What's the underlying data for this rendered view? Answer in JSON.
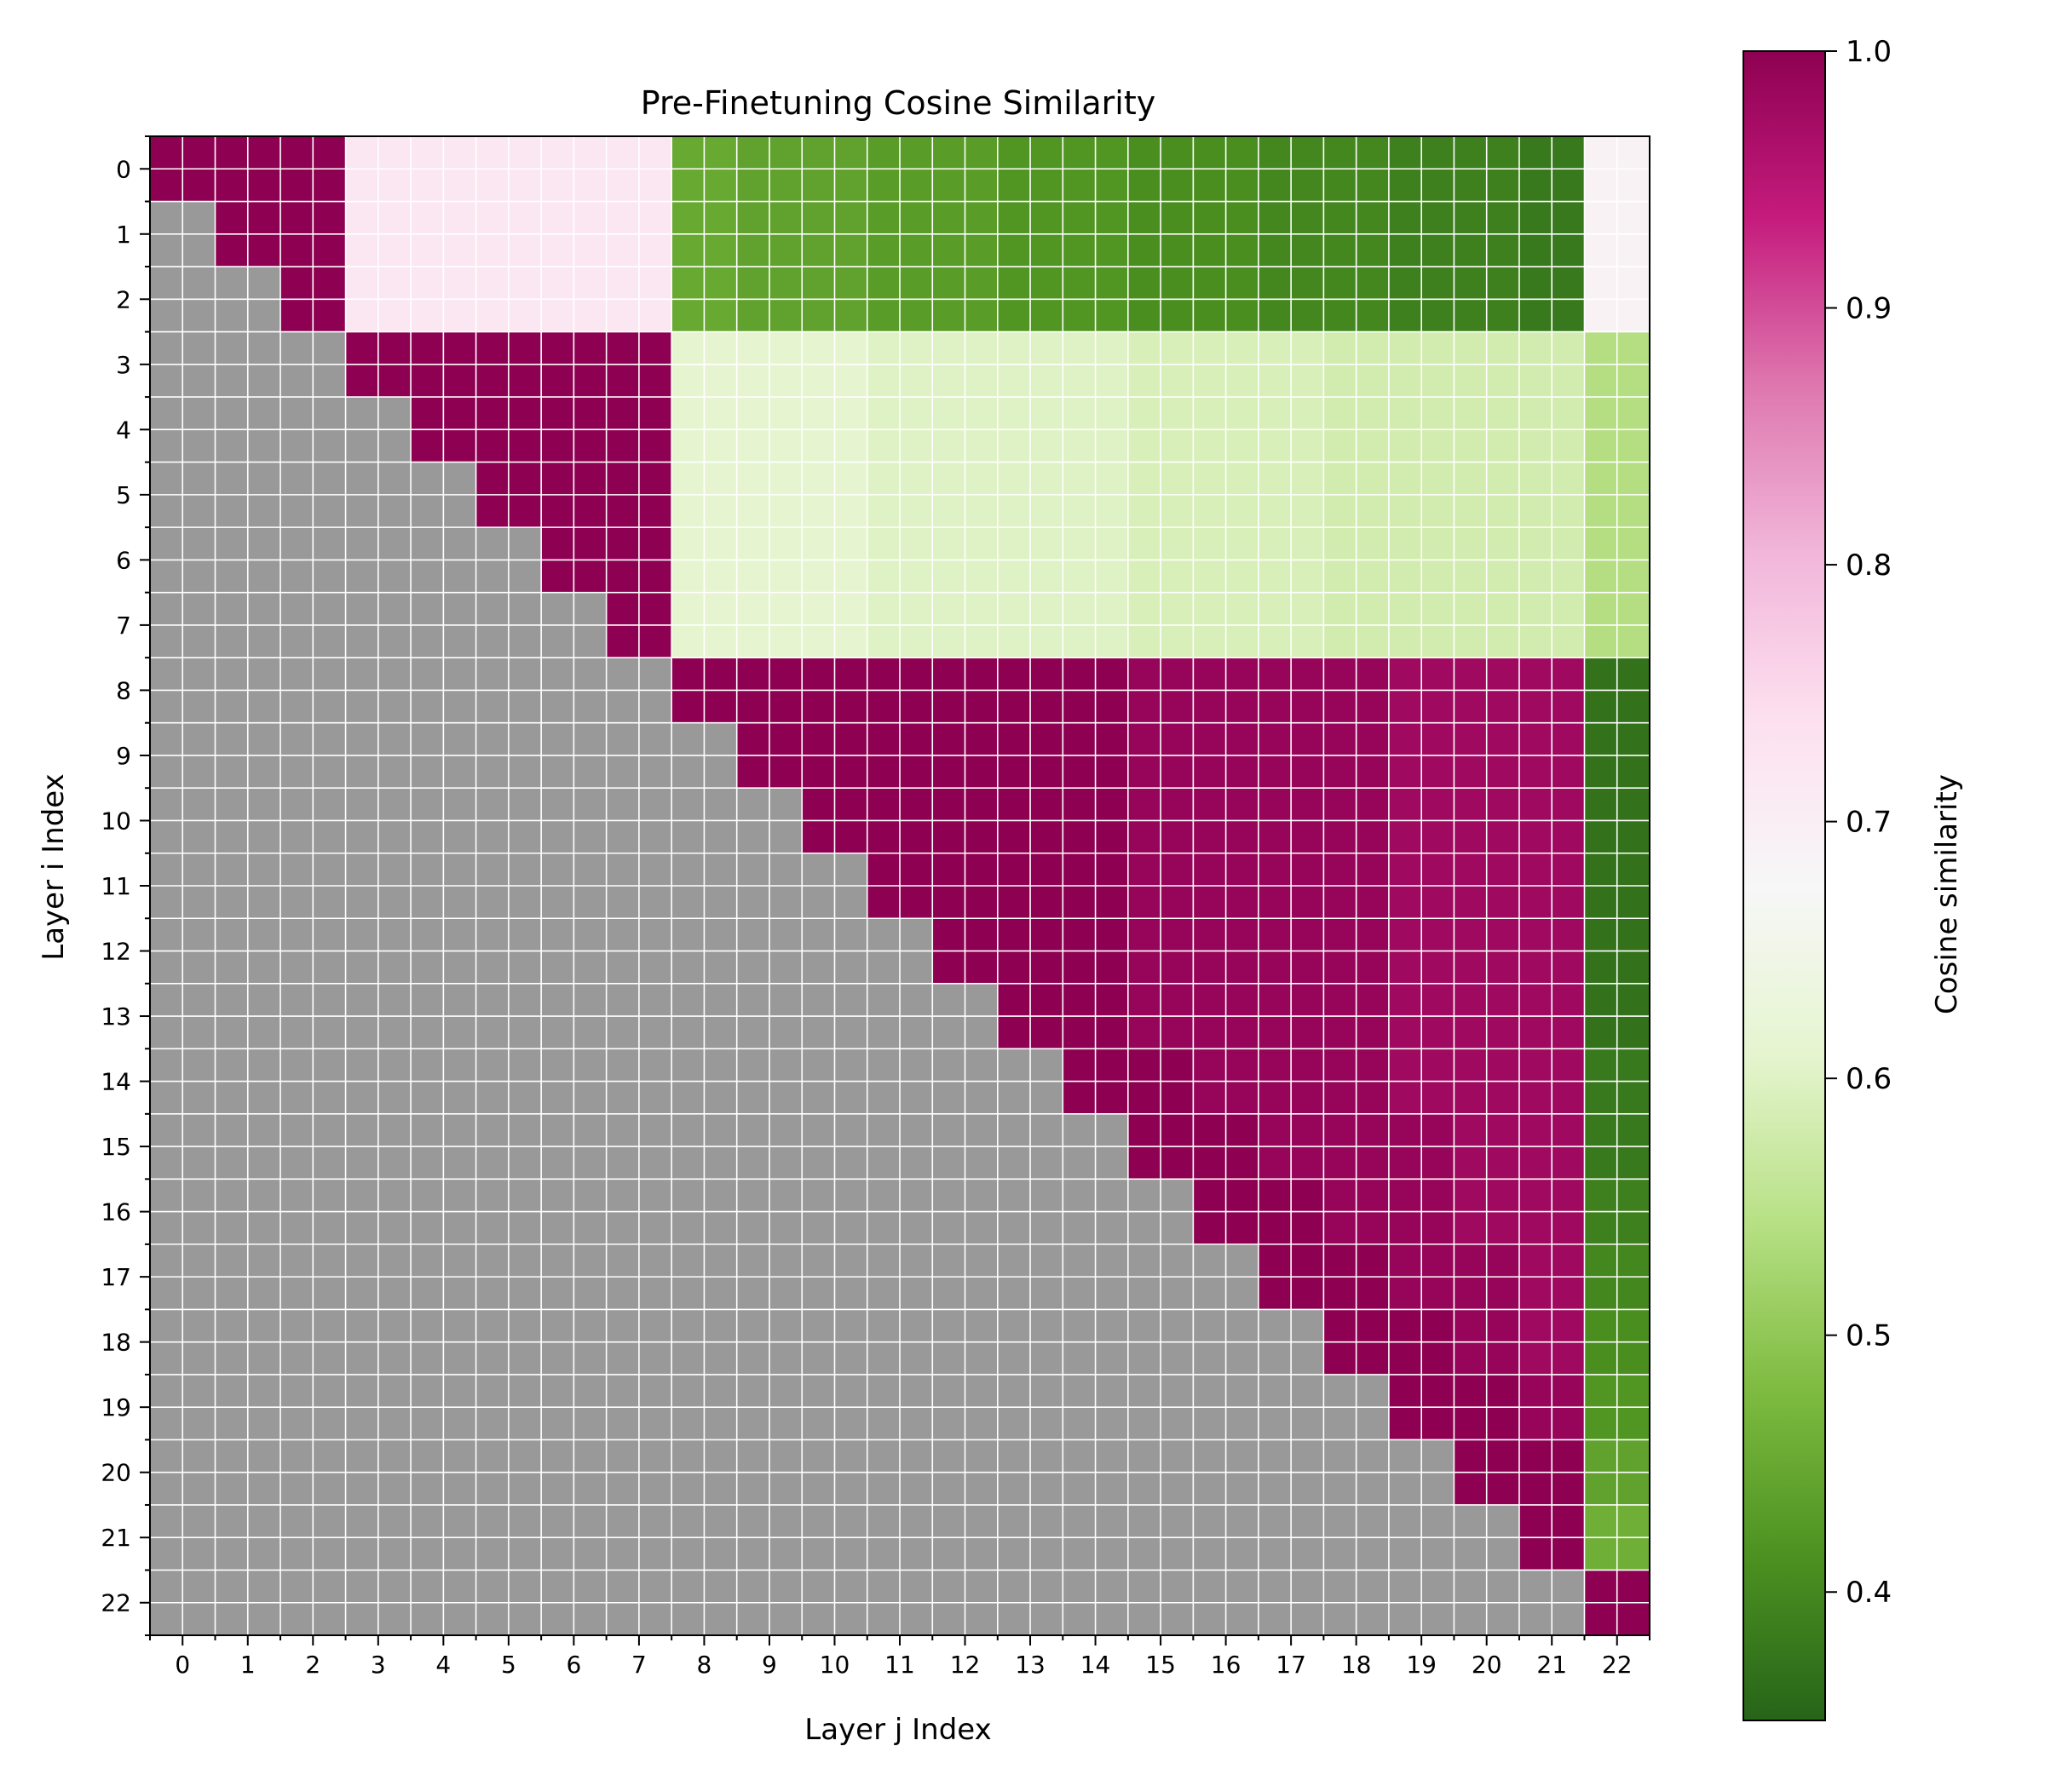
{
  "chart_data": {
    "type": "heatmap",
    "title": "Pre-Finetuning Cosine Similarity",
    "xlabel": "Layer j Index",
    "ylabel": "Layer i Index",
    "x_ticks": [
      "0",
      "1",
      "2",
      "3",
      "4",
      "5",
      "6",
      "7",
      "8",
      "9",
      "10",
      "11",
      "12",
      "13",
      "14",
      "15",
      "16",
      "17",
      "18",
      "19",
      "20",
      "21",
      "22"
    ],
    "y_ticks": [
      "0",
      "1",
      "2",
      "3",
      "4",
      "5",
      "6",
      "7",
      "8",
      "9",
      "10",
      "11",
      "12",
      "13",
      "14",
      "15",
      "16",
      "17",
      "18",
      "19",
      "20",
      "21",
      "22"
    ],
    "grid": true,
    "subcells_per_layer": 2,
    "masked_color": "#999999",
    "colorbar": {
      "label": "Cosine similarity",
      "min": 0.35,
      "max": 1.0,
      "ticks": [
        "0.4",
        "0.5",
        "0.6",
        "0.7",
        "0.8",
        "0.9",
        "1.0"
      ],
      "colormap": "PiYG",
      "colormap_stops": [
        "#276419",
        "#4d9221",
        "#7fbc41",
        "#b8e186",
        "#e6f5d0",
        "#f7f7f7",
        "#fde0ef",
        "#f1b6da",
        "#de77ae",
        "#c51b7d",
        "#8e0152"
      ]
    },
    "values": [
      [
        1.0,
        1.0,
        1.0,
        0.72,
        0.72,
        0.72,
        0.72,
        0.72,
        0.45,
        0.44,
        0.44,
        0.43,
        0.43,
        0.42,
        0.42,
        0.41,
        0.41,
        0.4,
        0.4,
        0.39,
        0.39,
        0.38,
        0.69
      ],
      [
        null,
        1.0,
        1.0,
        0.72,
        0.72,
        0.72,
        0.72,
        0.72,
        0.45,
        0.44,
        0.44,
        0.43,
        0.43,
        0.42,
        0.42,
        0.41,
        0.41,
        0.4,
        0.4,
        0.39,
        0.39,
        0.38,
        0.69
      ],
      [
        null,
        null,
        1.0,
        0.72,
        0.72,
        0.72,
        0.72,
        0.72,
        0.45,
        0.44,
        0.44,
        0.43,
        0.43,
        0.42,
        0.42,
        0.41,
        0.41,
        0.4,
        0.4,
        0.39,
        0.39,
        0.38,
        0.69
      ],
      [
        null,
        null,
        null,
        1.0,
        1.0,
        1.0,
        1.0,
        1.0,
        0.61,
        0.61,
        0.61,
        0.6,
        0.6,
        0.6,
        0.6,
        0.59,
        0.59,
        0.59,
        0.58,
        0.58,
        0.58,
        0.58,
        0.54
      ],
      [
        null,
        null,
        null,
        null,
        1.0,
        1.0,
        1.0,
        1.0,
        0.61,
        0.61,
        0.61,
        0.6,
        0.6,
        0.6,
        0.6,
        0.59,
        0.59,
        0.59,
        0.58,
        0.58,
        0.58,
        0.58,
        0.54
      ],
      [
        null,
        null,
        null,
        null,
        null,
        1.0,
        1.0,
        1.0,
        0.61,
        0.61,
        0.61,
        0.6,
        0.6,
        0.6,
        0.6,
        0.59,
        0.59,
        0.59,
        0.58,
        0.58,
        0.58,
        0.58,
        0.54
      ],
      [
        null,
        null,
        null,
        null,
        null,
        null,
        1.0,
        1.0,
        0.61,
        0.61,
        0.61,
        0.6,
        0.6,
        0.6,
        0.6,
        0.59,
        0.59,
        0.59,
        0.58,
        0.58,
        0.58,
        0.58,
        0.54
      ],
      [
        null,
        null,
        null,
        null,
        null,
        null,
        null,
        1.0,
        0.61,
        0.61,
        0.61,
        0.6,
        0.6,
        0.6,
        0.6,
        0.59,
        0.59,
        0.59,
        0.58,
        0.58,
        0.58,
        0.58,
        0.54
      ],
      [
        null,
        null,
        null,
        null,
        null,
        null,
        null,
        null,
        1.0,
        1.0,
        1.0,
        1.0,
        1.0,
        1.0,
        1.0,
        0.99,
        0.99,
        0.99,
        0.99,
        0.98,
        0.98,
        0.98,
        0.37
      ],
      [
        null,
        null,
        null,
        null,
        null,
        null,
        null,
        null,
        null,
        1.0,
        1.0,
        1.0,
        1.0,
        1.0,
        1.0,
        0.99,
        0.99,
        0.99,
        0.99,
        0.98,
        0.98,
        0.98,
        0.37
      ],
      [
        null,
        null,
        null,
        null,
        null,
        null,
        null,
        null,
        null,
        null,
        1.0,
        1.0,
        1.0,
        1.0,
        1.0,
        0.99,
        0.99,
        0.99,
        0.99,
        0.98,
        0.98,
        0.98,
        0.37
      ],
      [
        null,
        null,
        null,
        null,
        null,
        null,
        null,
        null,
        null,
        null,
        null,
        1.0,
        1.0,
        1.0,
        1.0,
        0.99,
        0.99,
        0.99,
        0.99,
        0.98,
        0.98,
        0.98,
        0.37
      ],
      [
        null,
        null,
        null,
        null,
        null,
        null,
        null,
        null,
        null,
        null,
        null,
        null,
        1.0,
        1.0,
        1.0,
        0.99,
        0.99,
        0.99,
        0.99,
        0.98,
        0.98,
        0.98,
        0.37
      ],
      [
        null,
        null,
        null,
        null,
        null,
        null,
        null,
        null,
        null,
        null,
        null,
        null,
        null,
        1.0,
        1.0,
        0.99,
        0.99,
        0.99,
        0.99,
        0.98,
        0.98,
        0.98,
        0.37
      ],
      [
        null,
        null,
        null,
        null,
        null,
        null,
        null,
        null,
        null,
        null,
        null,
        null,
        null,
        null,
        1.0,
        1.0,
        0.99,
        0.99,
        0.99,
        0.98,
        0.98,
        0.98,
        0.38
      ],
      [
        null,
        null,
        null,
        null,
        null,
        null,
        null,
        null,
        null,
        null,
        null,
        null,
        null,
        null,
        null,
        1.0,
        1.0,
        0.99,
        0.99,
        0.99,
        0.98,
        0.98,
        0.38
      ],
      [
        null,
        null,
        null,
        null,
        null,
        null,
        null,
        null,
        null,
        null,
        null,
        null,
        null,
        null,
        null,
        null,
        1.0,
        1.0,
        0.99,
        0.99,
        0.98,
        0.98,
        0.39
      ],
      [
        null,
        null,
        null,
        null,
        null,
        null,
        null,
        null,
        null,
        null,
        null,
        null,
        null,
        null,
        null,
        null,
        null,
        1.0,
        1.0,
        0.99,
        0.99,
        0.98,
        0.4
      ],
      [
        null,
        null,
        null,
        null,
        null,
        null,
        null,
        null,
        null,
        null,
        null,
        null,
        null,
        null,
        null,
        null,
        null,
        null,
        1.0,
        1.0,
        0.99,
        0.98,
        0.41
      ],
      [
        null,
        null,
        null,
        null,
        null,
        null,
        null,
        null,
        null,
        null,
        null,
        null,
        null,
        null,
        null,
        null,
        null,
        null,
        null,
        1.0,
        1.0,
        0.99,
        0.42
      ],
      [
        null,
        null,
        null,
        null,
        null,
        null,
        null,
        null,
        null,
        null,
        null,
        null,
        null,
        null,
        null,
        null,
        null,
        null,
        null,
        null,
        1.0,
        1.0,
        0.44
      ],
      [
        null,
        null,
        null,
        null,
        null,
        null,
        null,
        null,
        null,
        null,
        null,
        null,
        null,
        null,
        null,
        null,
        null,
        null,
        null,
        null,
        null,
        1.0,
        0.46
      ],
      [
        null,
        null,
        null,
        null,
        null,
        null,
        null,
        null,
        null,
        null,
        null,
        null,
        null,
        null,
        null,
        null,
        null,
        null,
        null,
        null,
        null,
        null,
        1.0
      ]
    ]
  }
}
